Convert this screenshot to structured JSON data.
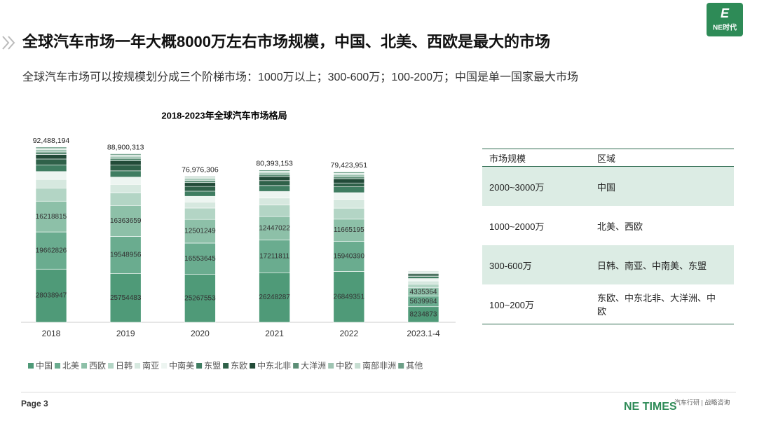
{
  "header": {
    "title": "全球汽车市场一年大概8000万左右市场规模，中国、北美、西欧是最大的市场",
    "subtitle": "全球汽车市场可以按规模划分成三个阶梯市场：1000万以上；300-600万；100-200万；中国是单一国家最大市场",
    "logo": "NE时代"
  },
  "chart_data": {
    "type": "bar",
    "stacked": true,
    "title": "2018-2023年全球汽车市场格局",
    "legend": "bottom",
    "categories": [
      "2018",
      "2019",
      "2020",
      "2021",
      "2022",
      "2023.1-4"
    ],
    "series": [
      {
        "name": "中国",
        "color": "#4f9a78",
        "data_labels": true,
        "values": [
          28038947,
          25754483,
          25267553,
          26248287,
          26849351,
          8234873
        ]
      },
      {
        "name": "北美",
        "color": "#6aac8f",
        "data_labels": true,
        "values": [
          19662826,
          19548956,
          16553645,
          17211811,
          15940390,
          5639984
        ]
      },
      {
        "name": "西欧",
        "color": "#8dc0a8",
        "data_labels": true,
        "values": [
          16218815,
          16363659,
          12501249,
          12447022,
          11665195,
          4335364
        ]
      },
      {
        "name": "日韩",
        "color": "#b3d5c5",
        "values": [
          7000000,
          6800000,
          6000000,
          6000000,
          5800000,
          2000000
        ]
      },
      {
        "name": "南亚",
        "color": "#d6e8df",
        "values": [
          4500000,
          4300000,
          3200000,
          3700000,
          4700000,
          1600000
        ]
      },
      {
        "name": "中南美",
        "color": "#edf5f1",
        "values": [
          4200000,
          3900000,
          3000000,
          3500000,
          3500000,
          1300000
        ]
      },
      {
        "name": "东盟",
        "color": "#3f7d61",
        "values": [
          3500000,
          3300000,
          2700000,
          3100000,
          3100000,
          1100000
        ]
      },
      {
        "name": "东欧",
        "color": "#2f6149",
        "values": [
          3100000,
          3000000,
          2500000,
          2600000,
          2000000,
          800000
        ]
      },
      {
        "name": "中东北非",
        "color": "#224b38",
        "values": [
          2400000,
          2300000,
          2000000,
          2200000,
          2300000,
          700000
        ]
      },
      {
        "name": "大洋洲",
        "color": "#5c8e76",
        "values": [
          1300000,
          1300000,
          1100000,
          1100000,
          1100000,
          400000
        ]
      },
      {
        "name": "中欧",
        "color": "#9fc4b2",
        "values": [
          1200000,
          1100000,
          1000000,
          1000000,
          1000000,
          300000
        ]
      },
      {
        "name": "南部非洲",
        "color": "#c6ddd1",
        "values": [
          700000,
          700000,
          600000,
          700000,
          700000,
          300000
        ]
      },
      {
        "name": "其他",
        "color": "#6d9f87",
        "values": [
          700000,
          600000,
          500000,
          600000,
          700000,
          300000
        ]
      }
    ],
    "totals": {
      "values": [
        92488194,
        88900313,
        76976306,
        80393153,
        79423951
      ],
      "value_labels": [
        "92,488,194",
        "88,900,313",
        "76,976,306",
        "80,393,153",
        "79,423,951"
      ]
    }
  },
  "table": {
    "columns": [
      "市场规模",
      "区域"
    ],
    "rows": [
      [
        "2000~3000万",
        "中国"
      ],
      [
        "1000~2000万",
        "北美、西欧"
      ],
      [
        "300-600万",
        "日韩、南亚、中南美、东盟"
      ],
      [
        "100~200万",
        "东欧、中东北非、大洋洲、中欧"
      ]
    ]
  },
  "footer": {
    "page": "Page 3",
    "brand": "NE TIMES",
    "tagline": "汽车行研 | 战略咨询"
  }
}
